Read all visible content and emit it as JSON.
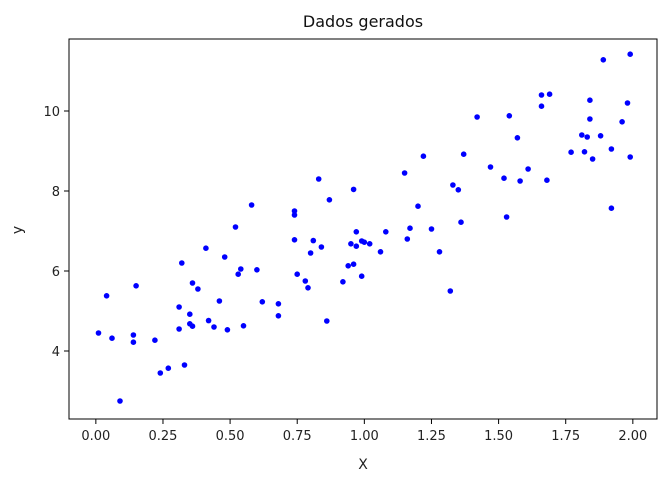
{
  "chart_data": {
    "type": "scatter",
    "title": "Dados gerados",
    "xlabel": "X",
    "ylabel": "y",
    "xlim": [
      -0.1,
      2.09
    ],
    "ylim": [
      2.3,
      11.8
    ],
    "grid": false,
    "xticks": [
      0.0,
      0.25,
      0.5,
      0.75,
      1.0,
      1.25,
      1.5,
      1.75,
      2.0
    ],
    "xtick_labels": [
      "0.00",
      "0.25",
      "0.50",
      "0.75",
      "1.00",
      "1.25",
      "1.50",
      "1.75",
      "2.00"
    ],
    "yticks": [
      4,
      6,
      8,
      10
    ],
    "ytick_labels": [
      "4",
      "6",
      "8",
      "10"
    ],
    "marker_color": "#0000ff",
    "series": [
      {
        "x": [
          0.01,
          0.04,
          0.06,
          0.09,
          0.14,
          0.14,
          0.15,
          0.22,
          0.24,
          0.27,
          0.31,
          0.31,
          0.32,
          0.33,
          0.35,
          0.35,
          0.36,
          0.36,
          0.38,
          0.41,
          0.42,
          0.44,
          0.46,
          0.48,
          0.49,
          0.52,
          0.53,
          0.54,
          0.55,
          0.58,
          0.6,
          0.62,
          0.68,
          0.68,
          0.74,
          0.74,
          0.74,
          0.75,
          0.78,
          0.79,
          0.8,
          0.81,
          0.83,
          0.84,
          0.86,
          0.87,
          0.92,
          0.94,
          0.95,
          0.96,
          0.96,
          0.97,
          0.97,
          0.99,
          0.99,
          1.0,
          1.02,
          1.06,
          1.08,
          1.15,
          1.16,
          1.17,
          1.2,
          1.22,
          1.25,
          1.28,
          1.32,
          1.33,
          1.35,
          1.36,
          1.37,
          1.42,
          1.47,
          1.52,
          1.53,
          1.54,
          1.57,
          1.58,
          1.61,
          1.66,
          1.66,
          1.68,
          1.69,
          1.77,
          1.81,
          1.82,
          1.83,
          1.84,
          1.84,
          1.85,
          1.88,
          1.89,
          1.92,
          1.92,
          1.96,
          1.98,
          1.99,
          1.99
        ],
        "y": [
          4.45,
          5.38,
          4.32,
          2.75,
          4.4,
          4.22,
          5.63,
          4.27,
          3.45,
          3.57,
          4.55,
          5.1,
          6.2,
          3.65,
          4.92,
          4.68,
          5.7,
          4.62,
          5.55,
          6.57,
          4.76,
          4.6,
          5.25,
          6.35,
          4.53,
          7.1,
          5.92,
          6.05,
          4.63,
          7.65,
          6.03,
          5.23,
          4.88,
          5.18,
          7.5,
          7.4,
          6.78,
          5.92,
          5.75,
          5.58,
          6.45,
          6.76,
          8.3,
          6.6,
          4.75,
          7.78,
          5.73,
          6.13,
          6.68,
          6.17,
          8.04,
          6.98,
          6.62,
          5.87,
          6.75,
          6.72,
          6.68,
          6.48,
          6.98,
          8.45,
          6.8,
          7.07,
          7.62,
          8.87,
          7.05,
          6.48,
          5.5,
          8.15,
          8.03,
          7.22,
          8.92,
          9.85,
          8.6,
          8.32,
          7.35,
          9.88,
          9.33,
          8.25,
          8.55,
          10.4,
          10.12,
          8.27,
          10.42,
          8.97,
          9.4,
          8.98,
          9.35,
          10.27,
          9.8,
          8.8,
          9.38,
          11.28,
          7.57,
          9.05,
          9.73,
          10.2,
          11.42,
          8.85
        ]
      }
    ]
  }
}
